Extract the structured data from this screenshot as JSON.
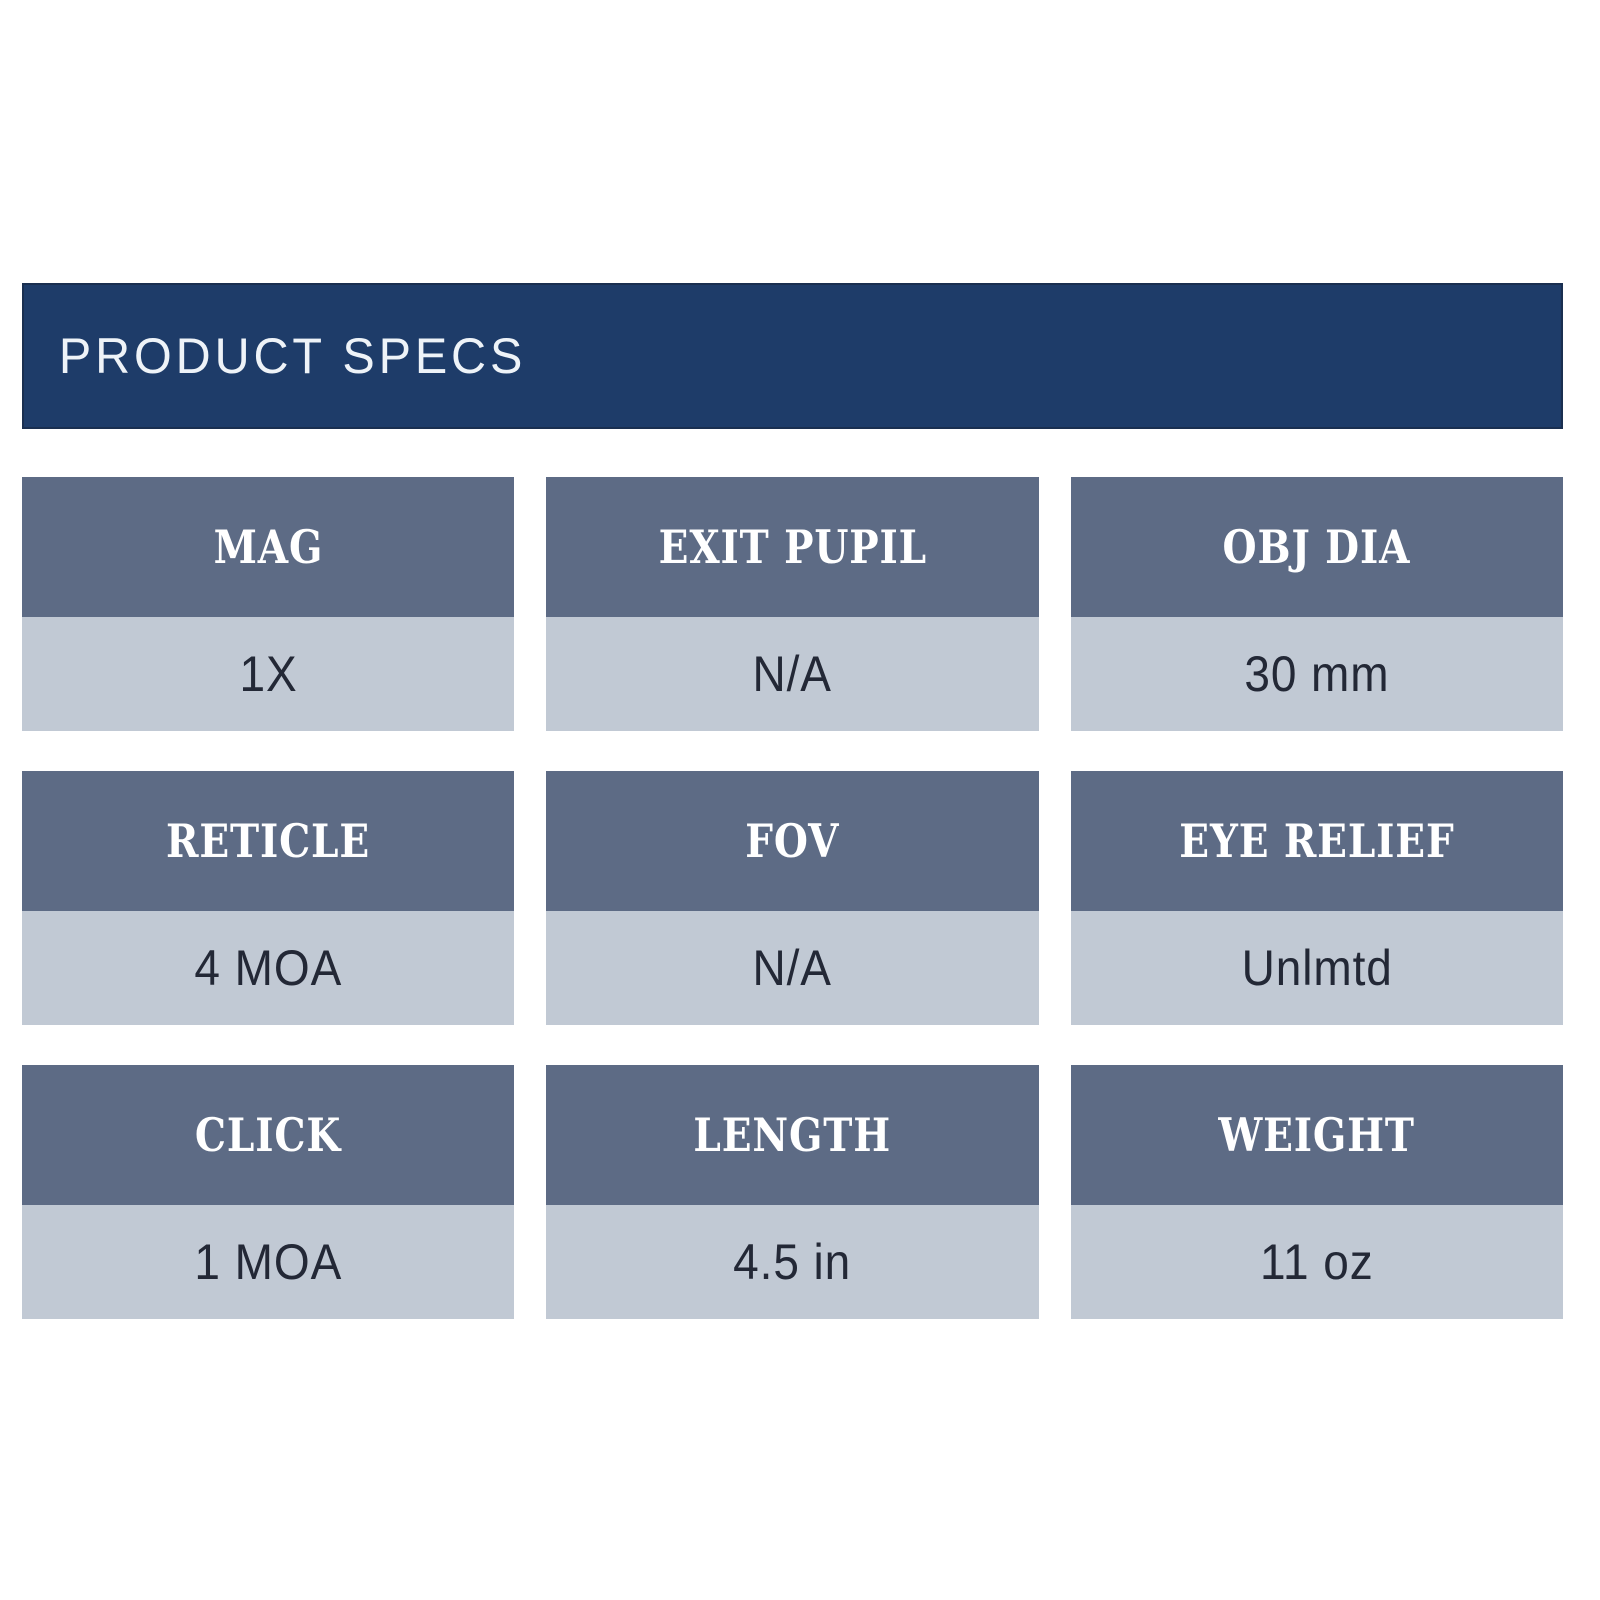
{
  "header": {
    "title": "PRODUCT SPECS",
    "background_color": "#1e3c69",
    "text_color": "#eef3f8"
  },
  "specs": {
    "header_bg_color": "#5d6b85",
    "header_text_color": "#ffffff",
    "body_bg_color": "#c1c9d4",
    "body_text_color": "#232836",
    "cells": [
      {
        "label": "MAG",
        "value": "1X"
      },
      {
        "label": "EXIT PUPIL",
        "value": "N/A"
      },
      {
        "label": "OBJ DIA",
        "value": "30 mm"
      },
      {
        "label": "RETICLE",
        "value": "4 MOA"
      },
      {
        "label": "FOV",
        "value": "N/A"
      },
      {
        "label": "EYE RELIEF",
        "value": "Unlmtd"
      },
      {
        "label": "CLICK",
        "value": "1 MOA"
      },
      {
        "label": "LENGTH",
        "value": "4.5 in"
      },
      {
        "label": "WEIGHT",
        "value": "11 oz"
      }
    ]
  }
}
